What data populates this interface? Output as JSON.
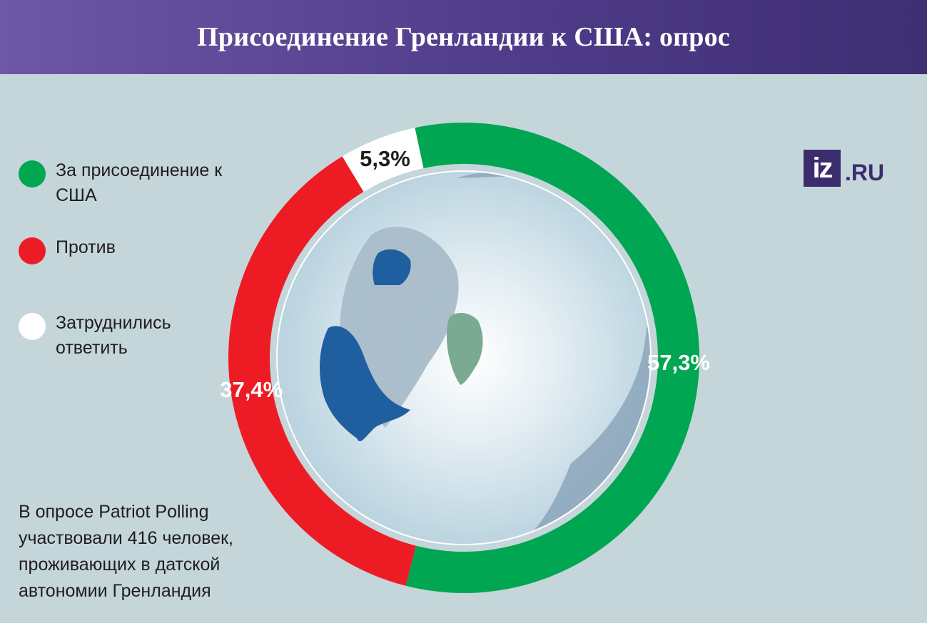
{
  "header": {
    "title": "Присоединение Гренландии к США: опрос"
  },
  "legend": {
    "items": [
      {
        "label": "За присоединение к США",
        "color": "#00a651"
      },
      {
        "label": "Против",
        "color": "#ed1c24"
      },
      {
        "label": "Затруднились ответить",
        "color": "#ffffff"
      }
    ]
  },
  "note": "В опросе Patriot Polling участвовали 416 человек, проживающих в датской автономии Гренландия",
  "logo": {
    "mark": "iz",
    "domain": ".RU"
  },
  "chart_data": {
    "type": "pie",
    "categories": [
      "За присоединение к США",
      "Против",
      "Затруднились ответить"
    ],
    "values": [
      57.3,
      37.4,
      5.3
    ],
    "labels": [
      "57,3%",
      "37,4%",
      "5,3%"
    ],
    "colors": [
      "#00a651",
      "#ed1c24",
      "#ffffff"
    ],
    "label_colors": [
      "#ffffff",
      "#ffffff",
      "#1e1e1e"
    ],
    "donut": true,
    "center_image": "north-polar-globe-map"
  }
}
